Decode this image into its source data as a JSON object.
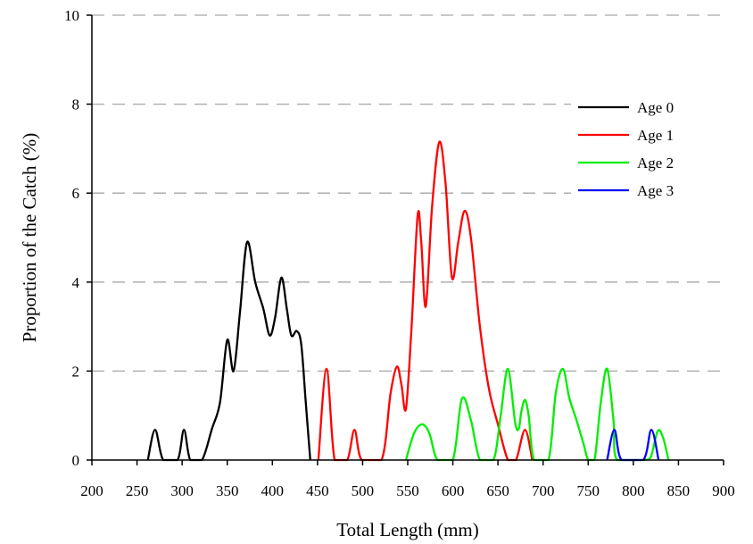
{
  "chart_data": {
    "type": "line",
    "xlabel": "Total Length (mm)",
    "ylabel": "Proportion of the Catch (%)",
    "xlim": [
      200,
      900
    ],
    "ylim": [
      0,
      10
    ],
    "x_ticks": [
      "200",
      "250",
      "300",
      "350",
      "400",
      "450",
      "500",
      "550",
      "600",
      "650",
      "700",
      "750",
      "800",
      "850",
      "900"
    ],
    "y_ticks": [
      "0",
      "2",
      "4",
      "6",
      "8",
      "10"
    ],
    "grid": "horizontal-dashed",
    "legend_position": "top-right",
    "series": [
      {
        "name": "Age 0",
        "color": "#000000",
        "points": [
          [
            262,
            0
          ],
          [
            270,
            0.68
          ],
          [
            279,
            0
          ],
          [
            295,
            0
          ],
          [
            302,
            0.68
          ],
          [
            309,
            0
          ],
          [
            322,
            0
          ],
          [
            333,
            0.7
          ],
          [
            342,
            1.3
          ],
          [
            350,
            2.7
          ],
          [
            357,
            2.0
          ],
          [
            364,
            3.3
          ],
          [
            372,
            4.9
          ],
          [
            381,
            4.0
          ],
          [
            390,
            3.4
          ],
          [
            397,
            2.8
          ],
          [
            403,
            3.2
          ],
          [
            410,
            4.1
          ],
          [
            416,
            3.4
          ],
          [
            421,
            2.8
          ],
          [
            427,
            2.9
          ],
          [
            432,
            2.6
          ],
          [
            437,
            1.3
          ],
          [
            442,
            0
          ]
        ]
      },
      {
        "name": "Age 1",
        "color": "#ff0000",
        "points": [
          [
            451,
            0
          ],
          [
            460,
            2.05
          ],
          [
            469,
            0
          ],
          [
            483,
            0
          ],
          [
            491,
            0.68
          ],
          [
            499,
            0
          ],
          [
            521,
            0
          ],
          [
            531,
            1.5
          ],
          [
            538,
            2.1
          ],
          [
            543,
            1.7
          ],
          [
            548,
            1.15
          ],
          [
            554,
            2.9
          ],
          [
            561,
            5.5
          ],
          [
            565,
            4.9
          ],
          [
            570,
            3.45
          ],
          [
            577,
            5.7
          ],
          [
            585,
            7.15
          ],
          [
            592,
            6.2
          ],
          [
            599,
            4.1
          ],
          [
            606,
            4.9
          ],
          [
            613,
            5.6
          ],
          [
            620,
            5.0
          ],
          [
            630,
            3.0
          ],
          [
            640,
            1.6
          ],
          [
            650,
            0.8
          ],
          [
            661,
            0
          ],
          [
            670,
            0
          ],
          [
            680,
            0.68
          ],
          [
            688,
            0
          ]
        ]
      },
      {
        "name": "Age 2",
        "color": "#00ee00",
        "points": [
          [
            548,
            0
          ],
          [
            557,
            0.6
          ],
          [
            566,
            0.8
          ],
          [
            574,
            0.6
          ],
          [
            583,
            0
          ],
          [
            600,
            0
          ],
          [
            610,
            1.38
          ],
          [
            620,
            0.9
          ],
          [
            630,
            0
          ],
          [
            645,
            0
          ],
          [
            653,
            1.0
          ],
          [
            661,
            2.05
          ],
          [
            669,
            0.85
          ],
          [
            673,
            0.7
          ],
          [
            676,
            1.1
          ],
          [
            680,
            1.35
          ],
          [
            684,
            1.0
          ],
          [
            690,
            0
          ],
          [
            706,
            0
          ],
          [
            714,
            1.5
          ],
          [
            722,
            2.05
          ],
          [
            729,
            1.4
          ],
          [
            737,
            0.9
          ],
          [
            745,
            0.35
          ],
          [
            750,
            0
          ],
          [
            757,
            0
          ],
          [
            764,
            1.3
          ],
          [
            771,
            2.05
          ],
          [
            778,
            0.9
          ],
          [
            782,
            0
          ],
          [
            810,
            0
          ],
          [
            819,
            0.05
          ],
          [
            827,
            0.65
          ],
          [
            833,
            0.5
          ],
          [
            839,
            0
          ]
        ]
      },
      {
        "name": "Age 3",
        "color": "#0000ff",
        "points": [
          [
            771,
            0
          ],
          [
            779,
            0.68
          ],
          [
            787,
            0
          ],
          [
            811,
            0
          ],
          [
            820,
            0.68
          ],
          [
            828,
            0
          ]
        ]
      }
    ]
  }
}
